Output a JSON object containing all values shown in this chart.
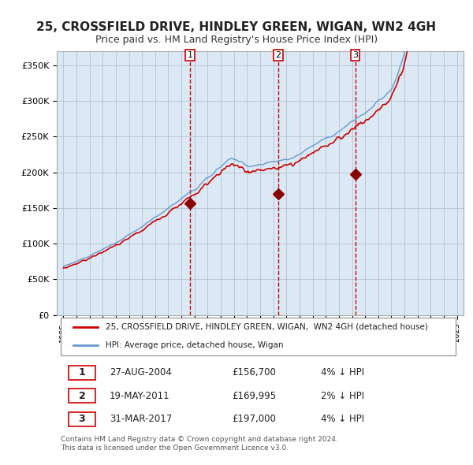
{
  "title": "25, CROSSFIELD DRIVE, HINDLEY GREEN, WIGAN, WN2 4GH",
  "subtitle": "Price paid vs. HM Land Registry's House Price Index (HPI)",
  "title_fontsize": 11,
  "subtitle_fontsize": 9,
  "bg_color": "#dce9f5",
  "plot_bg_color": "#dce9f5",
  "fig_bg_color": "#ffffff",
  "hpi_color": "#6699cc",
  "price_color": "#cc0000",
  "marker_color": "#8b0000",
  "dashed_color": "#cc0000",
  "purchases": [
    {
      "date_num": 2004.66,
      "price": 156700,
      "label": "1"
    },
    {
      "date_num": 2011.38,
      "price": 169995,
      "label": "2"
    },
    {
      "date_num": 2017.25,
      "price": 197000,
      "label": "3"
    }
  ],
  "purchase_table": [
    {
      "num": "1",
      "date": "27-AUG-2004",
      "price": "£156,700",
      "pct": "4% ↓ HPI"
    },
    {
      "num": "2",
      "date": "19-MAY-2011",
      "price": "£169,995",
      "pct": "2% ↓ HPI"
    },
    {
      "num": "3",
      "date": "31-MAR-2017",
      "price": "£197,000",
      "pct": "4% ↓ HPI"
    }
  ],
  "legend_entries": [
    "25, CROSSFIELD DRIVE, HINDLEY GREEN, WIGAN,  WN2 4GH (detached house)",
    "HPI: Average price, detached house, Wigan"
  ],
  "footer": "Contains HM Land Registry data © Crown copyright and database right 2024.\nThis data is licensed under the Open Government Licence v3.0.",
  "ylim": [
    0,
    370000
  ],
  "yticks": [
    0,
    50000,
    100000,
    150000,
    200000,
    250000,
    300000,
    350000
  ],
  "ytick_labels": [
    "£0",
    "£50K",
    "£100K",
    "£150K",
    "£200K",
    "£250K",
    "£300K",
    "£350K"
  ],
  "xlim_start": 1994.5,
  "xlim_end": 2025.5,
  "xticks": [
    1995,
    1996,
    1997,
    1998,
    1999,
    2000,
    2001,
    2002,
    2003,
    2004,
    2005,
    2006,
    2007,
    2008,
    2009,
    2010,
    2011,
    2012,
    2013,
    2014,
    2015,
    2016,
    2017,
    2018,
    2019,
    2020,
    2021,
    2022,
    2023,
    2024,
    2025
  ]
}
